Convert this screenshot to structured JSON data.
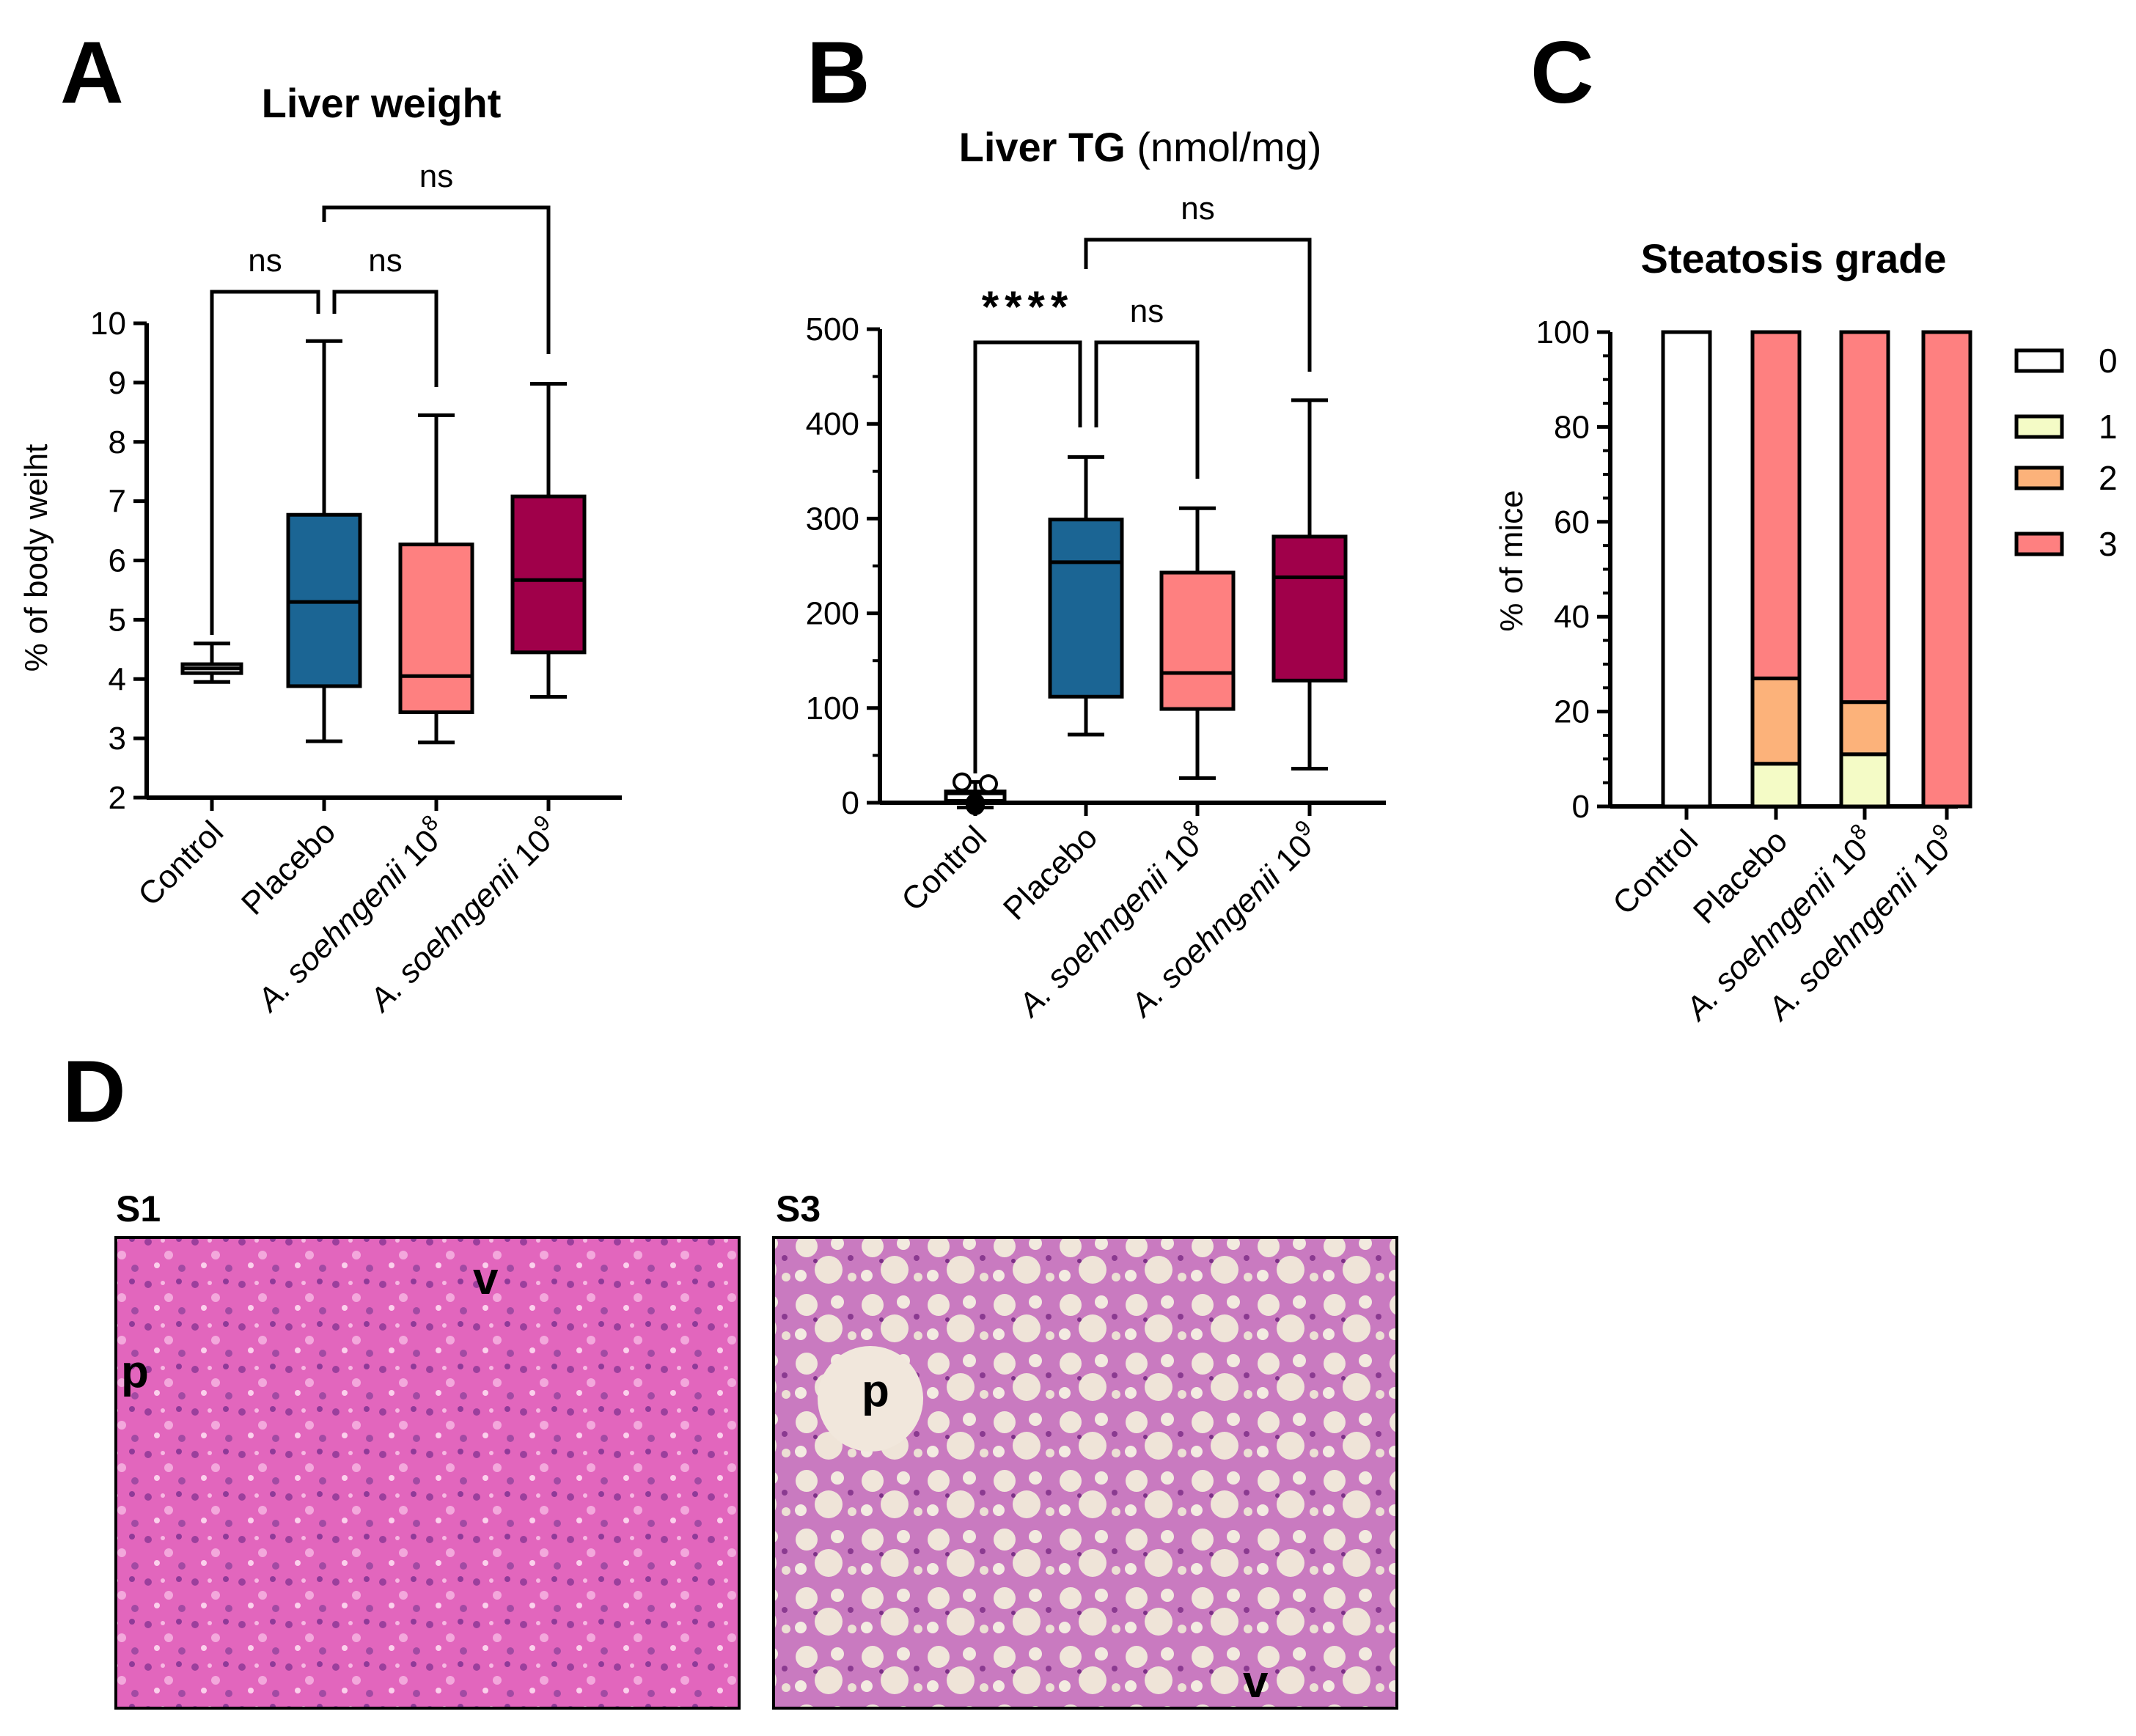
{
  "panel_letters": {
    "a": "A",
    "b": "B",
    "c": "C",
    "d": "D"
  },
  "colors": {
    "control": "#ffffff",
    "placebo": "#1b6594",
    "dose8": "#fe8080",
    "dose9": "#a0004a",
    "grade0": "#ffffff",
    "grade1": "#f4fbc6",
    "grade2": "#fcb27a",
    "grade3": "#fe8080",
    "stain_s1": "#e266bd",
    "stain_s3": "#d994ca"
  },
  "groups": [
    {
      "name": "Control",
      "italic": "",
      "exp": ""
    },
    {
      "name": "Placebo",
      "italic": "",
      "exp": ""
    },
    {
      "name": " 10",
      "italic": "A. soehngenii",
      "exp": "8"
    },
    {
      "name": " 10",
      "italic": "A. soehngenii",
      "exp": "9"
    }
  ],
  "chart_data": [
    {
      "type": "box",
      "panel": "A",
      "title": "Liver weight",
      "title_suffix": "",
      "ylabel": "% of body weiht",
      "ylim": [
        2,
        10
      ],
      "yticks": [
        "2",
        "3",
        "4",
        "5",
        "6",
        "7",
        "8",
        "9",
        "10"
      ],
      "boxes": [
        {
          "min": 3.95,
          "q1": 4.1,
          "median": 4.18,
          "q3": 4.25,
          "max": 4.6
        },
        {
          "min": 2.95,
          "q1": 3.88,
          "median": 5.3,
          "q3": 6.77,
          "max": 9.7
        },
        {
          "min": 2.93,
          "q1": 3.44,
          "median": 4.05,
          "q3": 6.27,
          "max": 8.45
        },
        {
          "min": 3.7,
          "q1": 4.45,
          "median": 5.67,
          "q3": 7.08,
          "max": 8.98
        }
      ],
      "points": [],
      "significance": [
        {
          "from": 0,
          "to": 1,
          "label": "ns"
        },
        {
          "from": 1,
          "to": 2,
          "label": "ns"
        },
        {
          "from": 1,
          "to": 3,
          "label": "ns"
        }
      ]
    },
    {
      "type": "box",
      "panel": "B",
      "title": "Liver TG",
      "title_suffix": " (nmol/mg)",
      "ylabel": "",
      "ylim": [
        0,
        500
      ],
      "yticks": [
        "0",
        "100",
        "200",
        "300",
        "400",
        "500"
      ],
      "boxes": [
        {
          "min": -5,
          "q1": 2,
          "median": 10,
          "q3": 12,
          "max": 22
        },
        {
          "min": 72,
          "q1": 112,
          "median": 254,
          "q3": 299,
          "max": 365
        },
        {
          "min": 26,
          "q1": 99,
          "median": 137,
          "q3": 243,
          "max": 311
        },
        {
          "min": 36,
          "q1": 129,
          "median": 238,
          "q3": 281,
          "max": 425
        }
      ],
      "points": [
        22,
        20,
        0,
        -3
      ],
      "significance": [
        {
          "from": 0,
          "to": 1,
          "label": "****"
        },
        {
          "from": 1,
          "to": 2,
          "label": "ns"
        },
        {
          "from": 1,
          "to": 3,
          "label": "ns"
        }
      ]
    },
    {
      "type": "stacked-bar",
      "panel": "C",
      "title": "Steatosis grade",
      "ylabel": "% of mice",
      "ylim": [
        0,
        100
      ],
      "yticks": [
        "0",
        "20",
        "40",
        "60",
        "80",
        "100"
      ],
      "legend": [
        "0",
        "1",
        "2",
        "3"
      ],
      "series": [
        {
          "name": "0",
          "values": [
            100,
            0,
            0,
            0
          ]
        },
        {
          "name": "1",
          "values": [
            0,
            9,
            11,
            0
          ]
        },
        {
          "name": "2",
          "values": [
            0,
            18,
            11,
            0
          ]
        },
        {
          "name": "3",
          "values": [
            0,
            73,
            78,
            100
          ]
        }
      ]
    }
  ],
  "micrographs": [
    {
      "label": "S1",
      "marks": [
        "v",
        "p"
      ]
    },
    {
      "label": "S3",
      "marks": [
        "p",
        "v"
      ]
    }
  ]
}
